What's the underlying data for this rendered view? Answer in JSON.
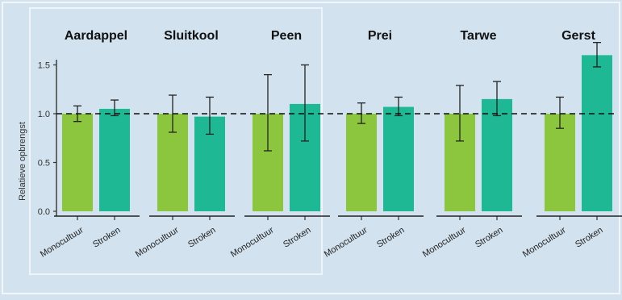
{
  "chart_data": {
    "type": "bar",
    "ylabel": "Relatieve opbrengst",
    "ylim": [
      0,
      1.6
    ],
    "yticks": [
      "0.0",
      "0.5",
      "1.0",
      "1.5"
    ],
    "reference_line": 1.0,
    "grid": false,
    "categories": [
      "Monocultuur",
      "Stroken"
    ],
    "panels": [
      {
        "title": "Aardappel",
        "values": [
          1.0,
          1.05
        ],
        "error_low": [
          0.92,
          0.98
        ],
        "error_high": [
          1.08,
          1.14
        ]
      },
      {
        "title": "Sluitkool",
        "values": [
          1.0,
          0.97
        ],
        "error_low": [
          0.81,
          0.79
        ],
        "error_high": [
          1.19,
          1.17
        ]
      },
      {
        "title": "Peen",
        "values": [
          1.0,
          1.1
        ],
        "error_low": [
          0.62,
          0.72
        ],
        "error_high": [
          1.4,
          1.5
        ]
      },
      {
        "title": "Prei",
        "values": [
          1.0,
          1.07
        ],
        "error_low": [
          0.9,
          0.98
        ],
        "error_high": [
          1.11,
          1.17
        ]
      },
      {
        "title": "Tarwe",
        "values": [
          1.0,
          1.15
        ],
        "error_low": [
          0.72,
          0.98
        ],
        "error_high": [
          1.29,
          1.33
        ]
      },
      {
        "title": "Gerst",
        "values": [
          1.0,
          1.6
        ],
        "error_low": [
          0.85,
          1.48
        ],
        "error_high": [
          1.17,
          1.73
        ]
      }
    ]
  },
  "colors": {
    "background": "#d2e2ef",
    "monocultuur": "#8cc63f",
    "stroken": "#1fb894",
    "highlight_box": "#eef4f9"
  }
}
